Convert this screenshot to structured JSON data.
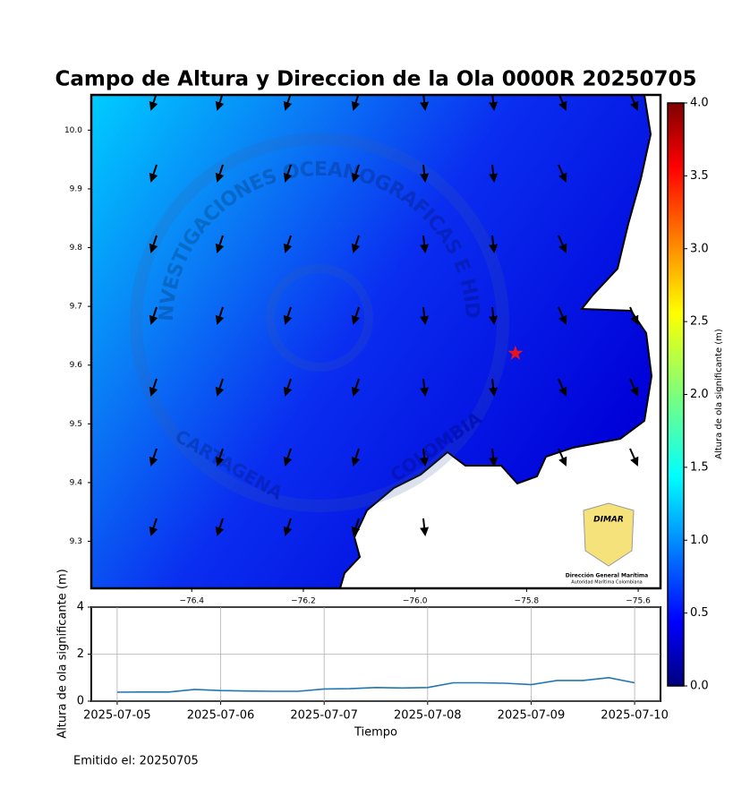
{
  "chart_data": [
    {
      "type": "map",
      "title": "Campo de Altura y Direccion de la Ola 0000R 20250705",
      "xlim": [
        -76.58,
        -75.56
      ],
      "ylim": [
        9.22,
        10.06
      ],
      "xticks": [
        {
          "value": -76.4,
          "label": "−76.4"
        },
        {
          "value": -76.2,
          "label": "−76.2"
        },
        {
          "value": -76.0,
          "label": "−76.0"
        },
        {
          "value": -75.8,
          "label": "−75.8"
        },
        {
          "value": -75.6,
          "label": "−75.6"
        }
      ],
      "yticks": [
        {
          "value": 10.0,
          "label": "10.0"
        },
        9.9,
        9.8,
        9.7,
        9.6,
        9.5,
        9.4,
        9.3
      ],
      "marker": {
        "lon": -75.82,
        "lat": 9.62,
        "color": "#e8141c"
      },
      "colorbar": {
        "label": "Altura de ola significante (m)",
        "lim": [
          0,
          4
        ],
        "ticks": [
          {
            "value": 0,
            "label": "0.0"
          },
          0.5,
          {
            "value": 1,
            "label": "1.0"
          },
          1.5,
          {
            "value": 2,
            "label": "2.0"
          },
          2.5,
          {
            "value": 3,
            "label": "3.0"
          },
          3.5,
          {
            "value": 4,
            "label": "4.0"
          }
        ]
      }
    },
    {
      "type": "line",
      "xlabel": "Tiempo",
      "ylabel": "Altura de ola significante (m)",
      "x": [
        "2025-07-05T00:00",
        "2025-07-05T06:00",
        "2025-07-05T12:00",
        "2025-07-05T18:00",
        "2025-07-06T00:00",
        "2025-07-06T06:00",
        "2025-07-06T12:00",
        "2025-07-06T18:00",
        "2025-07-07T00:00",
        "2025-07-07T06:00",
        "2025-07-07T12:00",
        "2025-07-07T18:00",
        "2025-07-08T00:00",
        "2025-07-08T06:00",
        "2025-07-08T12:00",
        "2025-07-08T18:00",
        "2025-07-09T00:00",
        "2025-07-09T06:00",
        "2025-07-09T12:00",
        "2025-07-09T18:00",
        "2025-07-10T00:00"
      ],
      "series": [
        {
          "color": "#1f77b4",
          "values": [
            0.38,
            0.39,
            0.39,
            0.5,
            0.45,
            0.43,
            0.42,
            0.42,
            0.52,
            0.53,
            0.58,
            0.56,
            0.58,
            0.78,
            0.78,
            0.76,
            0.7,
            0.88,
            0.88,
            1.0,
            0.78
          ]
        }
      ],
      "xlim": [
        "2025-07-04T18:00",
        "2025-07-10T06:00"
      ],
      "xticks": [
        "2025-07-05",
        "2025-07-06",
        "2025-07-07",
        "2025-07-08",
        "2025-07-09",
        "2025-07-10"
      ],
      "ylim": [
        0,
        4
      ],
      "yticks": [
        0,
        2,
        4
      ],
      "grid": true
    }
  ],
  "footer": "Emitido el: 20250705",
  "logo": {
    "name": "DIMAR",
    "line1": "Dirección General Marítima",
    "line2": "Autoridad Marítima Colombiana"
  },
  "watermark": {
    "ring": "CENTRO DE INVESTIGACIONES OCEANOGRAFICAS E HIDROGRAFICAS",
    "left": "CARTAGENA",
    "right": "COLOMBIA"
  }
}
